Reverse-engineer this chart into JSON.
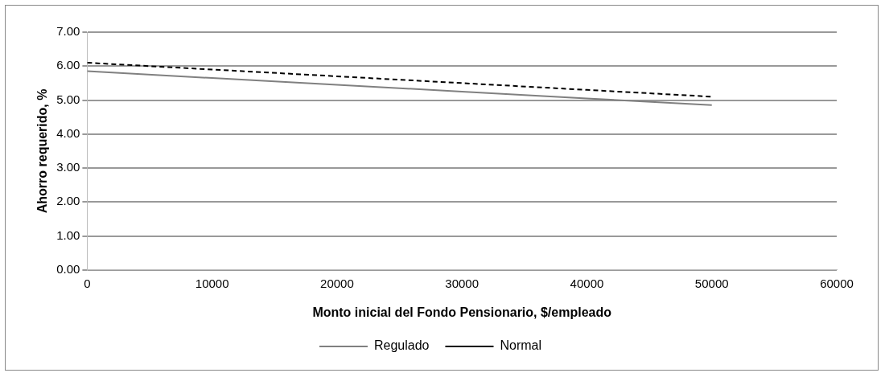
{
  "chart_data": {
    "type": "line",
    "xlabel": "Monto inicial del Fondo Pensionario, $/empleado",
    "ylabel": "Ahorro requerido, %",
    "x": [
      0,
      10000,
      20000,
      30000,
      40000,
      50000
    ],
    "series": [
      {
        "name": "Regulado",
        "color": "#808080",
        "line_style": "solid",
        "values": [
          5.85,
          5.65,
          5.45,
          5.25,
          5.05,
          4.85
        ]
      },
      {
        "name": "Normal",
        "color": "#000000",
        "line_style": "dashed",
        "values": [
          6.1,
          5.9,
          5.7,
          5.5,
          5.3,
          5.1
        ]
      }
    ],
    "xlim": [
      0,
      60000
    ],
    "xticks": [
      0,
      10000,
      20000,
      30000,
      40000,
      50000,
      60000
    ],
    "ylim": [
      0,
      7
    ],
    "yticks": [
      {
        "value": 0,
        "label": "0.00"
      },
      {
        "value": 1,
        "label": "1.00"
      },
      {
        "value": 2,
        "label": "2.00"
      },
      {
        "value": 3,
        "label": "3.00"
      },
      {
        "value": 4,
        "label": "4.00"
      },
      {
        "value": 5,
        "label": "5.00"
      },
      {
        "value": 6,
        "label": "6.00"
      },
      {
        "value": 7,
        "label": "7.00"
      }
    ],
    "grid": "y",
    "legend": "bottom",
    "marker": "none"
  }
}
